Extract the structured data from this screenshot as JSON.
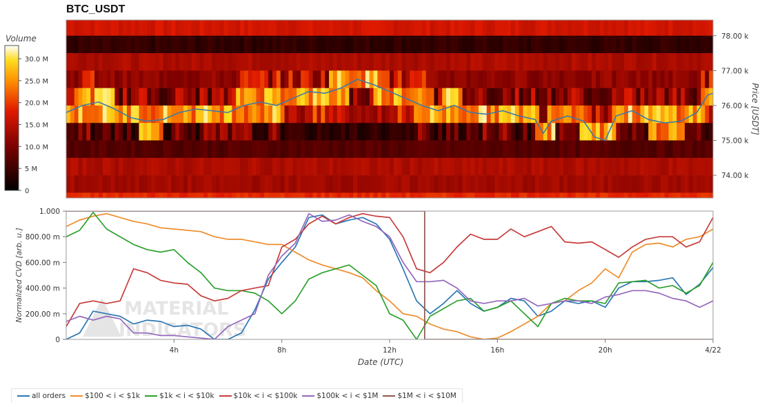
{
  "title": "BTC_USDT",
  "colors": {
    "all_orders": "#2a77b4",
    "r100_1k": "#ef8c2a",
    "r1k_10k": "#2ca02c",
    "r10k_100k": "#c73a3a",
    "r100k_1m": "#9467bd",
    "r1m_10m": "#8c564b"
  },
  "chart_data": [
    {
      "type": "heatmap",
      "title": "BTC_USDT",
      "ylabel": "Price [USDT]",
      "ylim": [
        73.35,
        78.45
      ],
      "yticks": [
        78.0,
        77.0,
        76.0,
        75.0,
        74.0
      ],
      "ytick_labels": [
        "78.00 k",
        "77.00 k",
        "76.00 k",
        "75.00 k",
        "74.00 k"
      ],
      "xlim": [
        0,
        24
      ],
      "colorbar": {
        "label": "Volume",
        "min": 0,
        "max": 33,
        "ticks": [
          0,
          5,
          10,
          15,
          20,
          25,
          30
        ],
        "tick_labels": [
          "0",
          "5 M",
          "10.0 M",
          "15.0 M",
          "20.0 M",
          "25.0 M",
          "30.0 M"
        ]
      },
      "price_bands": [
        {
          "low": 78.0,
          "high": 78.45,
          "base": 17
        },
        {
          "low": 77.5,
          "high": 78.0,
          "base": 4
        },
        {
          "low": 77.0,
          "high": 77.5,
          "base": 14
        },
        {
          "low": 76.5,
          "high": 77.0,
          "base": 16,
          "active": true
        },
        {
          "low": 76.0,
          "high": 76.5,
          "base": 9,
          "active": true
        },
        {
          "low": 75.5,
          "high": 76.0,
          "base": 18,
          "active": true
        },
        {
          "low": 75.0,
          "high": 75.5,
          "base": 3,
          "active": true
        },
        {
          "low": 74.5,
          "high": 75.0,
          "base": 7
        },
        {
          "low": 74.0,
          "high": 74.5,
          "base": 14
        },
        {
          "low": 73.5,
          "high": 74.0,
          "base": 13
        },
        {
          "low": 73.35,
          "high": 73.5,
          "base": 19
        }
      ],
      "price_line": {
        "name": "Price",
        "x": [
          0,
          0.6,
          1.2,
          1.8,
          2.4,
          3.0,
          3.6,
          4.2,
          4.8,
          5.4,
          6.0,
          6.6,
          7.2,
          7.8,
          8.4,
          9.0,
          9.6,
          10.2,
          10.8,
          11.4,
          12.0,
          12.6,
          13.2,
          13.8,
          14.4,
          15.0,
          15.6,
          16.2,
          16.8,
          17.4,
          17.7,
          18.0,
          18.6,
          19.2,
          19.6,
          20.0,
          20.4,
          21.0,
          21.6,
          22.2,
          22.8,
          23.4,
          23.8,
          24.0
        ],
        "y": [
          75.8,
          76.0,
          76.1,
          75.9,
          75.65,
          75.55,
          75.6,
          75.8,
          75.9,
          75.85,
          75.8,
          76.0,
          76.1,
          76.0,
          76.2,
          76.4,
          76.35,
          76.5,
          76.75,
          76.6,
          76.4,
          76.2,
          76.0,
          75.85,
          76.0,
          75.8,
          75.75,
          75.85,
          75.7,
          75.6,
          75.2,
          75.55,
          75.7,
          75.55,
          75.1,
          75.0,
          75.7,
          75.85,
          75.6,
          75.5,
          75.55,
          75.8,
          76.3,
          76.35
        ]
      }
    },
    {
      "type": "line",
      "xlabel": "Date (UTC)",
      "ylabel": "Normalized CVD [arb. u.]",
      "xlim": [
        0,
        24
      ],
      "ylim": [
        0,
        1
      ],
      "xticks": [
        4,
        8,
        12,
        16,
        20,
        24
      ],
      "xtick_labels": [
        "4h",
        "8h",
        "12h",
        "16h",
        "20h",
        "4/22"
      ],
      "yticks": [
        0,
        0.2,
        0.4,
        0.6,
        0.8,
        1.0
      ],
      "ytick_labels": [
        "0",
        "200.00 m",
        "400.00 m",
        "600.00 m",
        "800.00 m",
        "1.000"
      ],
      "legend_position": "bottom-left",
      "x": [
        0,
        0.5,
        1.0,
        1.5,
        2.0,
        2.5,
        3.0,
        3.5,
        4.0,
        4.5,
        5.0,
        5.5,
        6.0,
        6.5,
        7.0,
        7.5,
        8.0,
        8.5,
        9.0,
        9.5,
        10.0,
        10.5,
        11.0,
        11.5,
        12.0,
        12.5,
        13.0,
        13.5,
        14.0,
        14.5,
        15.0,
        15.5,
        16.0,
        16.5,
        17.0,
        17.5,
        18.0,
        18.5,
        19.0,
        19.5,
        20.0,
        20.5,
        21.0,
        21.5,
        22.0,
        22.5,
        23.0,
        23.5,
        24.0
      ],
      "series": [
        {
          "name": "all orders",
          "color": "#2a77b4",
          "values": [
            0.0,
            0.05,
            0.22,
            0.2,
            0.18,
            0.12,
            0.15,
            0.14,
            0.1,
            0.11,
            0.08,
            0.0,
            0.0,
            0.05,
            0.23,
            0.47,
            0.6,
            0.72,
            0.95,
            0.97,
            0.9,
            0.93,
            0.95,
            0.9,
            0.78,
            0.55,
            0.3,
            0.2,
            0.28,
            0.38,
            0.28,
            0.22,
            0.25,
            0.32,
            0.3,
            0.18,
            0.22,
            0.3,
            0.28,
            0.3,
            0.25,
            0.4,
            0.45,
            0.45,
            0.46,
            0.48,
            0.35,
            0.43,
            0.56
          ]
        },
        {
          "name": "$100 < i < $1k",
          "color": "#ef8c2a",
          "values": [
            0.88,
            0.93,
            0.96,
            0.98,
            0.95,
            0.92,
            0.9,
            0.87,
            0.86,
            0.85,
            0.84,
            0.8,
            0.78,
            0.78,
            0.76,
            0.74,
            0.74,
            0.68,
            0.62,
            0.58,
            0.55,
            0.52,
            0.48,
            0.38,
            0.3,
            0.2,
            0.18,
            0.12,
            0.08,
            0.06,
            0.02,
            0.0,
            0.01,
            0.06,
            0.12,
            0.18,
            0.28,
            0.3,
            0.38,
            0.44,
            0.55,
            0.48,
            0.68,
            0.74,
            0.75,
            0.72,
            0.78,
            0.8,
            0.86
          ]
        },
        {
          "name": "$1k < i < $10k",
          "color": "#2ca02c",
          "values": [
            0.8,
            0.85,
            0.99,
            0.86,
            0.8,
            0.74,
            0.7,
            0.68,
            0.7,
            0.6,
            0.52,
            0.4,
            0.38,
            0.38,
            0.36,
            0.3,
            0.2,
            0.3,
            0.47,
            0.52,
            0.55,
            0.58,
            0.5,
            0.42,
            0.2,
            0.15,
            0.0,
            0.18,
            0.24,
            0.3,
            0.32,
            0.22,
            0.25,
            0.3,
            0.2,
            0.1,
            0.28,
            0.32,
            0.3,
            0.3,
            0.28,
            0.44,
            0.45,
            0.46,
            0.4,
            0.42,
            0.36,
            0.42,
            0.6
          ]
        },
        {
          "name": "$10k < i < $100k",
          "color": "#c73a3a",
          "values": [
            0.1,
            0.28,
            0.3,
            0.28,
            0.3,
            0.55,
            0.52,
            0.46,
            0.44,
            0.43,
            0.34,
            0.3,
            0.32,
            0.38,
            0.4,
            0.42,
            0.72,
            0.78,
            0.9,
            0.96,
            0.9,
            0.95,
            0.98,
            0.96,
            0.95,
            0.8,
            0.55,
            0.52,
            0.6,
            0.72,
            0.82,
            0.78,
            0.78,
            0.86,
            0.8,
            0.84,
            0.88,
            0.76,
            0.75,
            0.76,
            0.7,
            0.64,
            0.72,
            0.78,
            0.8,
            0.8,
            0.72,
            0.76,
            0.95
          ]
        },
        {
          "name": "$100k < i < $1M",
          "color": "#9467bd",
          "values": [
            0.14,
            0.18,
            0.15,
            0.18,
            0.16,
            0.05,
            0.05,
            0.03,
            0.03,
            0.02,
            0.01,
            0.0,
            0.1,
            0.15,
            0.2,
            0.5,
            0.65,
            0.75,
            0.98,
            0.92,
            0.93,
            0.97,
            0.92,
            0.88,
            0.8,
            0.6,
            0.45,
            0.45,
            0.46,
            0.4,
            0.3,
            0.28,
            0.3,
            0.3,
            0.32,
            0.26,
            0.28,
            0.3,
            0.3,
            0.28,
            0.33,
            0.35,
            0.38,
            0.38,
            0.36,
            0.32,
            0.3,
            0.25,
            0.3
          ]
        },
        {
          "name": "$1M < i < $10M",
          "color": "#8c564b",
          "values": [
            1.0,
            1.0,
            1.0,
            1.0,
            1.0,
            1.0,
            1.0,
            1.0,
            1.0,
            1.0,
            1.0,
            1.0,
            1.0,
            1.0,
            1.0,
            1.0,
            1.0,
            1.0,
            1.0,
            1.0,
            1.0,
            1.0,
            1.0,
            1.0,
            1.0,
            1.0,
            1.0,
            0.0,
            0.0,
            0.0,
            0.0,
            0.0,
            0.0,
            0.0,
            0.0,
            0.0,
            0.0,
            0.0,
            0.0,
            0.0,
            0.0,
            0.0,
            0.0,
            0.0,
            0.0,
            0.0,
            0.0,
            0.0,
            0.0
          ]
        }
      ]
    }
  ],
  "watermark": {
    "line1": "MATERIAL",
    "line2": "INDICATORS"
  }
}
